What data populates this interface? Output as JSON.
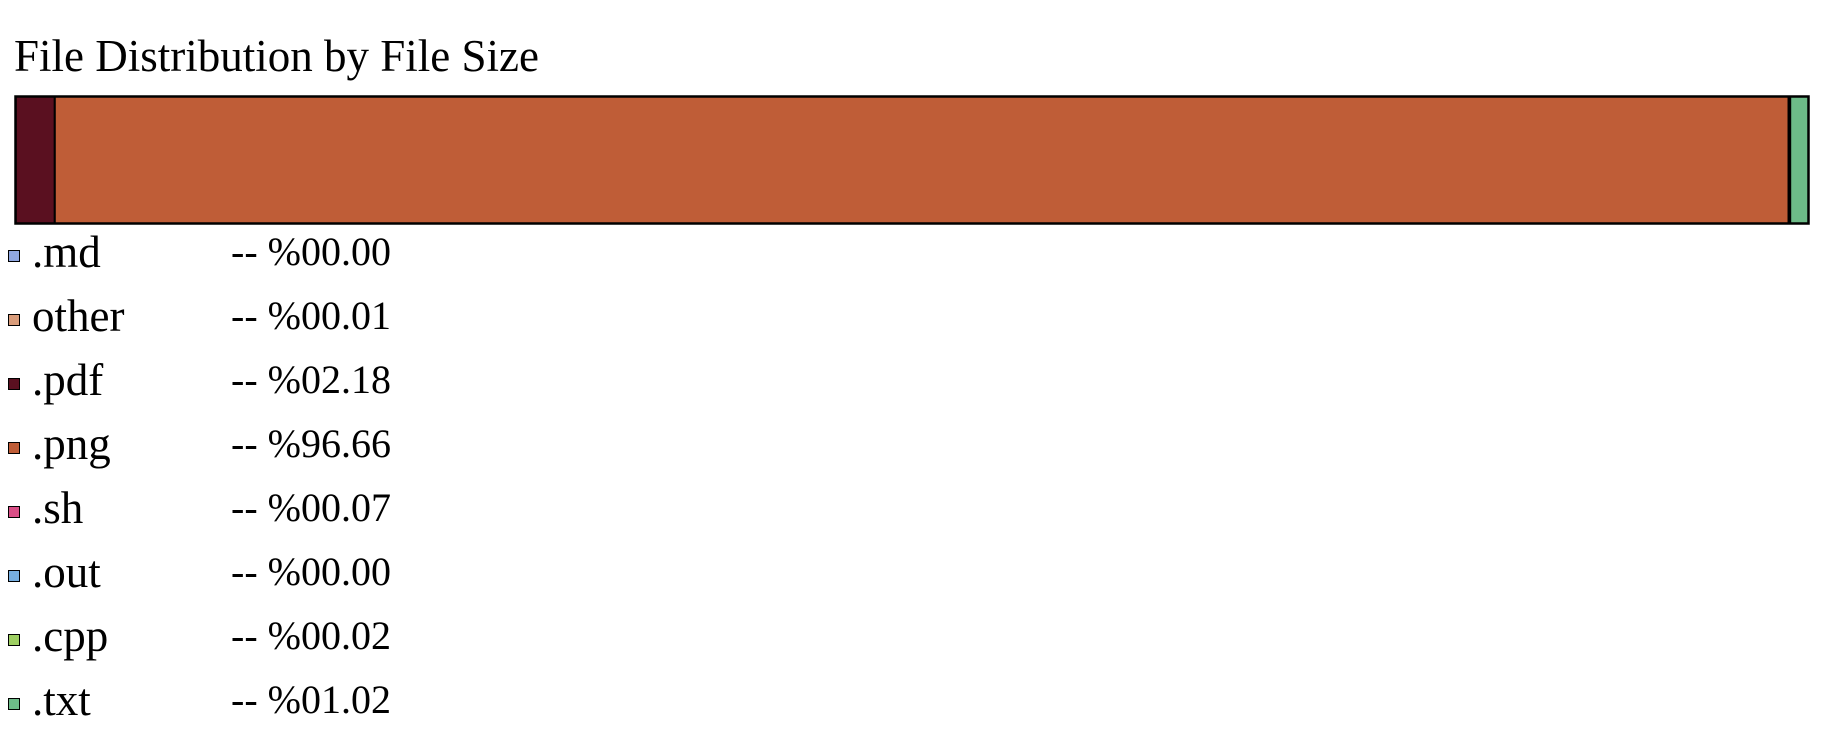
{
  "chart_data": {
    "type": "bar",
    "orientation": "horizontal-stacked",
    "title": "File Distribution by File Size",
    "xlabel": "",
    "ylabel": "",
    "grid": false,
    "legend_position": "bottom",
    "unit": "percent",
    "categories": [
      ".md",
      "other",
      ".pdf",
      ".png",
      ".sh",
      ".out",
      ".cpp",
      ".txt"
    ],
    "values": [
      0.0,
      0.01,
      2.18,
      96.66,
      0.07,
      0.0,
      0.02,
      1.02
    ],
    "series": [
      {
        "name": ".md",
        "value": 0.0,
        "display": "-- %00.00",
        "color": "#8fa6e0"
      },
      {
        "name": "other",
        "value": 0.01,
        "display": "-- %00.01",
        "color": "#d99c7a"
      },
      {
        "name": ".pdf",
        "value": 2.18,
        "display": "-- %02.18",
        "color": "#5a1020"
      },
      {
        "name": ".png",
        "value": 96.66,
        "display": "-- %96.66",
        "color": "#bf5d37"
      },
      {
        "name": ".sh",
        "value": 0.07,
        "display": "-- %00.07",
        "color": "#d94e86"
      },
      {
        "name": ".out",
        "value": 0.0,
        "display": "-- %00.00",
        "color": "#76aee0"
      },
      {
        "name": ".cpp",
        "value": 0.02,
        "display": "-- %00.02",
        "color": "#9ecf62"
      },
      {
        "name": ".txt",
        "value": 1.02,
        "display": "-- %01.02",
        "color": "#6dbb88"
      }
    ]
  }
}
